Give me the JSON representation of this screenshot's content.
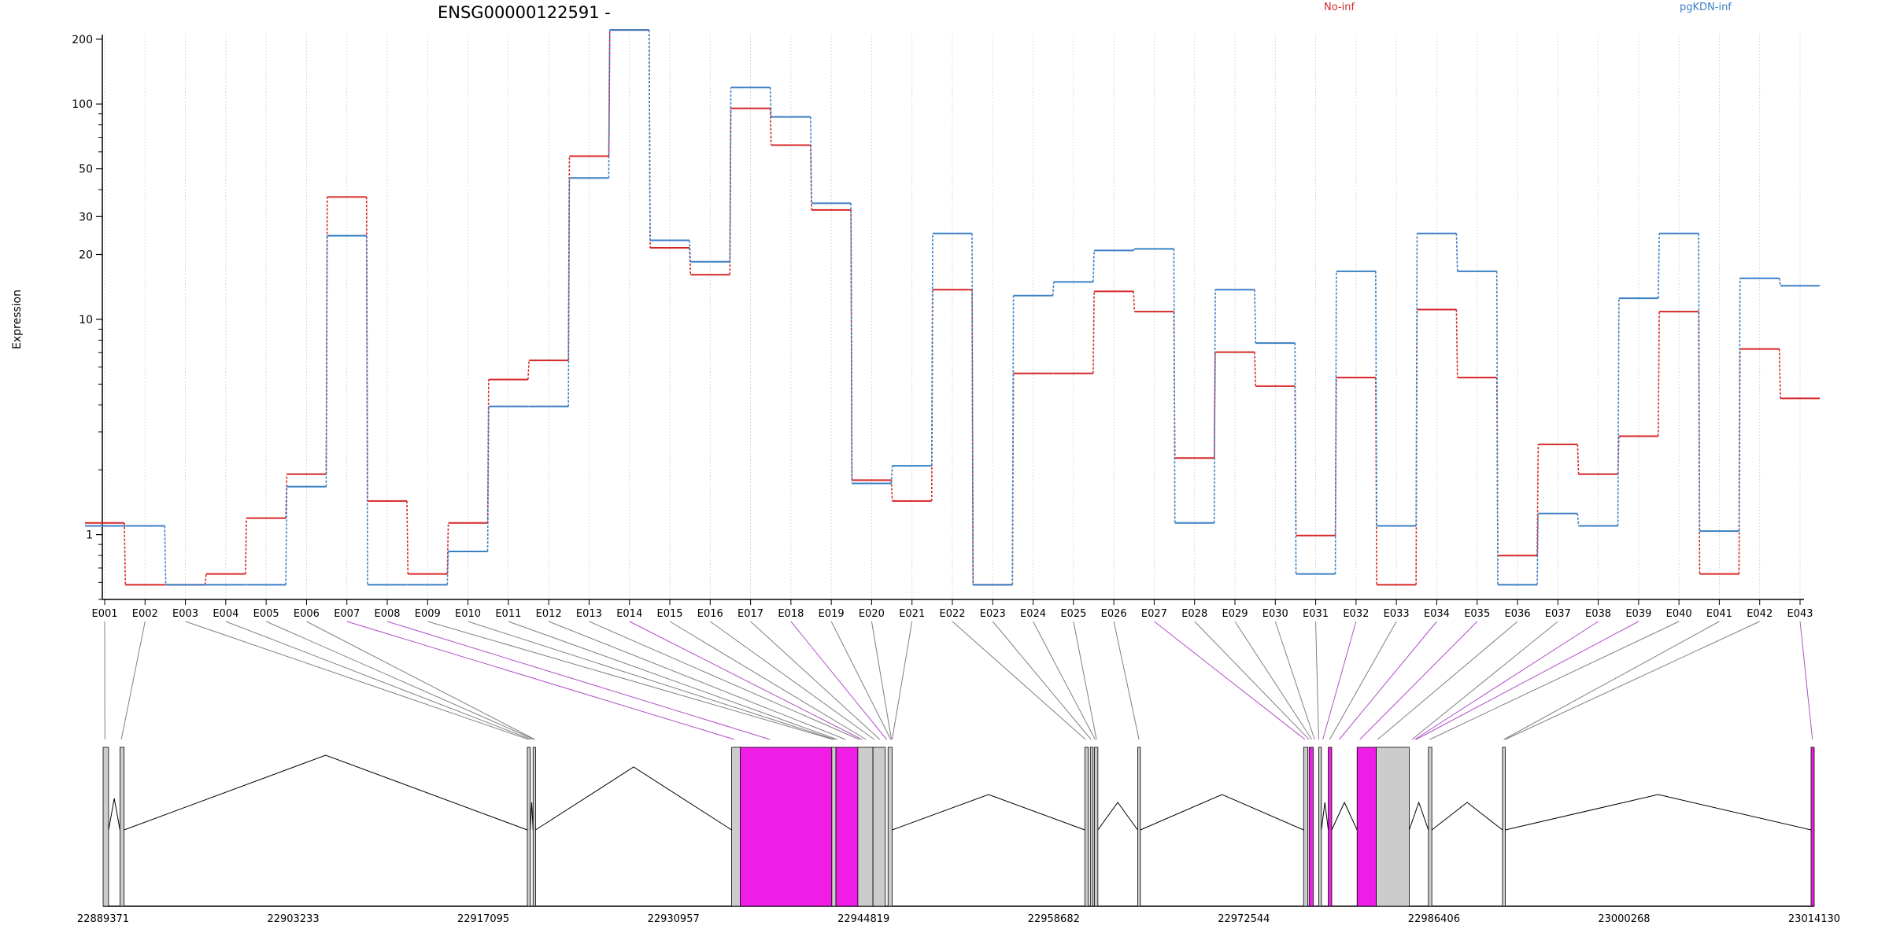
{
  "chart_data": {
    "type": "line",
    "title": "ENSG00000122591 -",
    "ylabel": "Expression",
    "yscale": "log",
    "ylim": [
      0.5,
      210
    ],
    "yticks": [
      1,
      10,
      20,
      30,
      50,
      100,
      200
    ],
    "grid": "vertical",
    "legend_position": "top-right",
    "categories": [
      "E001",
      "E002",
      "E003",
      "E004",
      "E005",
      "E006",
      "E007",
      "E008",
      "E009",
      "E010",
      "E011",
      "E012",
      "E013",
      "E014",
      "E015",
      "E016",
      "E017",
      "E018",
      "E019",
      "E020",
      "E021",
      "E022",
      "E023",
      "E024",
      "E025",
      "E026",
      "E027",
      "E028",
      "E029",
      "E030",
      "E031",
      "E032",
      "E033",
      "E034",
      "E035",
      "E036",
      "E037",
      "E038",
      "E039",
      "E040",
      "E041",
      "E042",
      "E043"
    ],
    "series": [
      {
        "name": "No-inf",
        "color": "#d62728",
        "values": [
          0.95,
          0.49,
          0.49,
          0.55,
          1,
          1.6,
          31,
          1.2,
          0.55,
          0.95,
          4.4,
          5.4,
          48,
          185,
          18,
          13.5,
          80,
          54,
          27,
          1.5,
          1.2,
          11.5,
          0.49,
          4.7,
          4.7,
          11.3,
          9.1,
          1.9,
          5.9,
          4.1,
          0.83,
          4.5,
          0.49,
          9.3,
          4.5,
          0.67,
          2.2,
          1.6,
          2.4,
          9.1,
          0.55,
          6.1,
          3.6
        ]
      },
      {
        "name": "pgKDN-inf",
        "color": "#3a7fc4",
        "values": [
          0.92,
          0.92,
          0.49,
          0.49,
          0.49,
          1.4,
          20.5,
          0.49,
          0.49,
          0.7,
          3.3,
          3.3,
          38,
          185,
          19.5,
          15.5,
          100,
          73,
          29,
          1.45,
          1.75,
          21,
          0.49,
          10.8,
          12.5,
          17.5,
          17.8,
          0.95,
          11.5,
          6.5,
          0.55,
          14,
          0.92,
          21,
          14,
          0.49,
          1.05,
          0.92,
          10.5,
          21,
          0.87,
          13,
          12
        ]
      }
    ]
  },
  "gene_model": {
    "coordinate_ticks": [
      "22889371",
      "22903233",
      "22917095",
      "22930957",
      "22944819",
      "22958682",
      "22972544",
      "22986406",
      "23000268",
      "23014130"
    ],
    "highlight_color": "#ef1de6",
    "exon_color": "#cccccc"
  }
}
